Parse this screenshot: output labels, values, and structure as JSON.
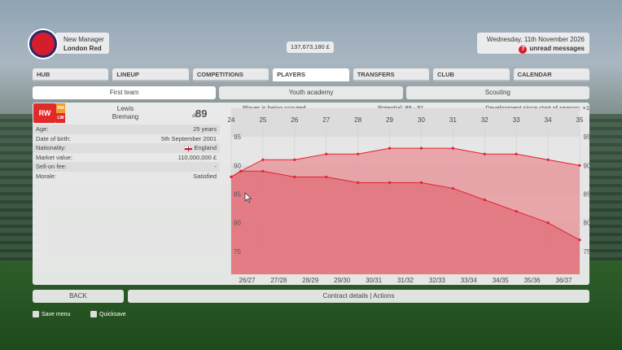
{
  "header": {
    "manager_name": "New Manager",
    "club_name": "London Red",
    "balance": "137,673,180 £",
    "date": "Wednesday, 11th November 2026",
    "unread_count": "7",
    "unread_label": "unread messages"
  },
  "nav": {
    "tabs": [
      "HUB",
      "LINEUP",
      "COMPETITIONS",
      "PLAYERS",
      "TRANSFERS",
      "CLUB",
      "CALENDAR"
    ],
    "active": "PLAYERS"
  },
  "subnav": {
    "tabs": [
      "First team",
      "Youth academy",
      "Scouting"
    ],
    "active": "First team"
  },
  "player": {
    "position_main": "RW",
    "position_alt1": "RM",
    "position_alt2": "LW",
    "first_name": "Lewis",
    "last_name": "Bremang",
    "rating": "89",
    "info": [
      {
        "label": "Age:",
        "value": "25 years"
      },
      {
        "label": "Date of birth:",
        "value": "5th September 2001"
      },
      {
        "label": "Nationality:",
        "value": "England"
      },
      {
        "label": "Market value:",
        "value": "110,000,000 £"
      },
      {
        "label": "Sell-on fee:",
        "value": "-"
      },
      {
        "label": "Morale:",
        "value": "Satisfied"
      }
    ]
  },
  "chart_header": {
    "scouting": "Player is being scouted",
    "potential": "Potential: 89 - 91",
    "development": "Development since start of season: +1"
  },
  "chart_data": {
    "type": "area",
    "x_top_ages": [
      24,
      25,
      26,
      27,
      28,
      29,
      30,
      31,
      32,
      33,
      34,
      35
    ],
    "x_bottom_seasons": [
      "26/27",
      "27/28",
      "28/29",
      "29/30",
      "30/31",
      "31/32",
      "32/33",
      "33/34",
      "34/35",
      "35/36",
      "36/37"
    ],
    "y_ticks": [
      75,
      80,
      85,
      90,
      95
    ],
    "ylim": [
      71,
      97
    ],
    "series": [
      {
        "values": [
          {
            "x": 24,
            "y": 88
          },
          {
            "x": 24.3,
            "y": 89
          },
          {
            "x": 25,
            "y": 91
          },
          {
            "x": 26,
            "y": 91
          },
          {
            "x": 27,
            "y": 92
          },
          {
            "x": 28,
            "y": 92
          },
          {
            "x": 29,
            "y": 93
          },
          {
            "x": 30,
            "y": 93
          },
          {
            "x": 31,
            "y": 93
          },
          {
            "x": 32,
            "y": 92
          },
          {
            "x": 33,
            "y": 92
          },
          {
            "x": 34,
            "y": 91
          },
          {
            "x": 35,
            "y": 90
          }
        ]
      },
      {
        "values": [
          {
            "x": 24,
            "y": 88
          },
          {
            "x": 24.3,
            "y": 89
          },
          {
            "x": 25,
            "y": 89
          },
          {
            "x": 26,
            "y": 88
          },
          {
            "x": 27,
            "y": 88
          },
          {
            "x": 28,
            "y": 87
          },
          {
            "x": 29,
            "y": 87
          },
          {
            "x": 30,
            "y": 87
          },
          {
            "x": 31,
            "y": 86
          },
          {
            "x": 32,
            "y": 84
          },
          {
            "x": 33,
            "y": 82
          },
          {
            "x": 34,
            "y": 80
          },
          {
            "x": 35,
            "y": 77
          }
        ]
      }
    ],
    "colors": {
      "line": "#e1222d",
      "fill_upper": "#e79aa0",
      "fill_lower": "#e2707a"
    }
  },
  "footer": {
    "back": "BACK",
    "actions": "Contract details | Actions",
    "hint_save": "Save menu",
    "hint_quicksave": "Quicksave"
  }
}
